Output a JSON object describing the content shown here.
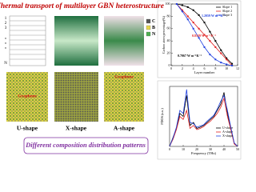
{
  "title": "Thermal transport of multilayer GBN heterostructure",
  "layer_labels": [
    "1",
    "2",
    "3",
    "N"
  ],
  "element_legend": [
    {
      "label": "C",
      "color": "#555555"
    },
    {
      "label": "B",
      "color": "#e8d84a"
    },
    {
      "label": "N",
      "color": "#4caf50"
    }
  ],
  "panels": [
    {
      "label": "U-shape",
      "region_label": "Graphene"
    },
    {
      "label": "X-shape"
    },
    {
      "label": "A-shape",
      "region_label": "Graphene"
    }
  ],
  "caption": "Different composition distribution patterns",
  "carbon_chart": {
    "type": "line",
    "x_label": "Layer number",
    "y_label": "Carbon atom percentage(%)",
    "x": [
      1,
      2,
      3,
      4,
      5,
      6,
      7,
      8,
      9,
      10,
      11
    ],
    "series": [
      {
        "name": "Slope 1",
        "color": "#000000",
        "values": [
          100,
          98,
          95,
          90,
          82,
          70,
          55,
          40,
          25,
          12,
          3
        ]
      },
      {
        "name": "Slope 2",
        "color": "#e02020",
        "values": [
          100,
          90,
          80,
          70,
          60,
          50,
          40,
          30,
          20,
          10,
          0
        ]
      },
      {
        "name": "Slope 3",
        "color": "#2040e0",
        "values": [
          100,
          88,
          75,
          60,
          45,
          30,
          18,
          10,
          5,
          2,
          0
        ]
      }
    ],
    "annotations": [
      {
        "text": "1.2059 W m⁻¹K⁻¹",
        "color": "#2040e0"
      },
      {
        "text": "0.8139 W m⁻¹K⁻¹",
        "color": "#e02020"
      },
      {
        "text": "0.7067 W m⁻¹K⁻¹",
        "color": "#000000"
      }
    ],
    "xlim": [
      0,
      12
    ],
    "xticks": [
      0,
      2,
      4,
      6,
      8,
      10,
      12
    ],
    "ylim": [
      0,
      100
    ],
    "yticks": [
      0,
      20,
      40,
      60,
      80,
      100
    ]
  },
  "pdos_chart": {
    "type": "line",
    "x_label": "Frequency (THz)",
    "y_label": "PDOS (a.u.)",
    "x": [
      0,
      2.5,
      5,
      7.5,
      10,
      12.5,
      15,
      17.5,
      20,
      22.5,
      25,
      27.5,
      30,
      32.5,
      35,
      37.5,
      40,
      42.5,
      45,
      47.5,
      50
    ],
    "series": [
      {
        "name": "U-shape",
        "color": "#000000",
        "values": [
          0,
          0.15,
          0.3,
          0.55,
          0.5,
          0.85,
          0.35,
          0.4,
          0.3,
          0.32,
          0.35,
          0.4,
          0.45,
          0.5,
          0.6,
          0.7,
          0.9,
          0.55,
          0.3,
          0.05,
          0
        ]
      },
      {
        "name": "A-shape",
        "color": "#e02020",
        "values": [
          0,
          0.12,
          0.28,
          0.5,
          0.45,
          0.6,
          0.3,
          0.35,
          0.28,
          0.3,
          0.33,
          0.38,
          0.42,
          0.48,
          0.55,
          0.65,
          0.8,
          0.5,
          0.28,
          0.04,
          0
        ]
      },
      {
        "name": "X-shape",
        "color": "#2040e0",
        "values": [
          0,
          0.14,
          0.32,
          0.6,
          0.55,
          0.95,
          0.4,
          0.38,
          0.32,
          0.34,
          0.36,
          0.42,
          0.47,
          0.52,
          0.62,
          0.75,
          0.85,
          0.6,
          0.32,
          0.06,
          0
        ]
      }
    ],
    "xlim": [
      0,
      50
    ],
    "xticks": [
      0,
      10,
      20,
      30,
      40,
      50
    ],
    "ylim": [
      0,
      1
    ]
  }
}
